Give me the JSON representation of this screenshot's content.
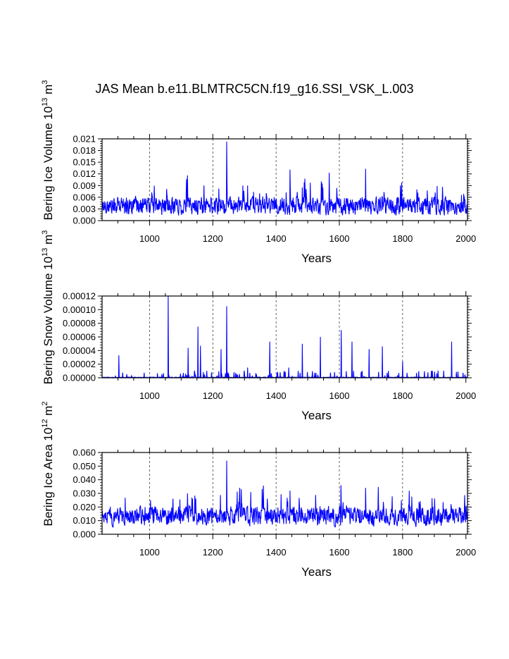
{
  "title": "JAS Mean b.e11.BLMTRC5CN.f19_g16.SSI_VSK_L.003",
  "series_color": "#0000ff",
  "chart_data": [
    {
      "type": "line",
      "ylabel_main": "Bering Ice Volume 10",
      "ylabel_exp": "13",
      "ylabel_unit": "m",
      "ylabel_unit_exp": "3",
      "xlabel": "Years",
      "xlim": [
        850,
        2005
      ],
      "ylim": [
        0,
        0.021
      ],
      "xticks": [
        1000,
        1200,
        1400,
        1600,
        1800,
        2000
      ],
      "yticks": [
        "0.000",
        "0.003",
        "0.006",
        "0.009",
        "0.012",
        "0.015",
        "0.018",
        "0.021"
      ],
      "ytick_values": [
        0,
        0.003,
        0.006,
        0.009,
        0.012,
        0.015,
        0.018,
        0.021
      ],
      "baseline": 0.0035,
      "noise": 0.002,
      "spikes": [
        [
          1244,
          0.0203
        ],
        [
          1444,
          0.0131
        ],
        [
          1683,
          0.0133
        ],
        [
          1568,
          0.0123
        ],
        [
          1120,
          0.0116
        ]
      ]
    },
    {
      "type": "line",
      "ylabel_main": "Bering Snow Volume 10",
      "ylabel_exp": "13",
      "ylabel_unit": "m",
      "ylabel_unit_exp": "3",
      "xlabel": "Years",
      "xlim": [
        850,
        2005
      ],
      "ylim": [
        0,
        0.00012
      ],
      "xticks": [
        1000,
        1200,
        1400,
        1600,
        1800,
        2000
      ],
      "yticks": [
        "0.00000",
        "0.00002",
        "0.00004",
        "0.00006",
        "0.00008",
        "0.00010",
        "0.00012"
      ],
      "ytick_values": [
        0,
        2e-05,
        4e-05,
        6e-05,
        8e-05,
        0.0001,
        0.00012
      ],
      "baseline": 5e-07,
      "noise": 1.5e-06,
      "spikes": [
        [
          1059,
          0.00012
        ],
        [
          1244,
          0.000105
        ],
        [
          1153,
          7.5e-05
        ],
        [
          1606,
          7e-05
        ],
        [
          1540,
          6e-05
        ],
        [
          1640,
          5.3e-05
        ],
        [
          1380,
          5.3e-05
        ],
        [
          1955,
          5.3e-05
        ],
        [
          1483,
          5e-05
        ],
        [
          1161,
          4.7e-05
        ],
        [
          1122,
          4.4e-05
        ],
        [
          1736,
          4.6e-05
        ],
        [
          1226,
          4.2e-05
        ],
        [
          1694,
          4.2e-05
        ],
        [
          903,
          3.3e-05
        ],
        [
          1310,
          1.5e-05
        ],
        [
          1440,
          1.5e-05
        ],
        [
          1800,
          2.4e-05
        ]
      ]
    },
    {
      "type": "line",
      "ylabel_main": "Bering Ice Area 10",
      "ylabel_exp": "12",
      "ylabel_unit": "m",
      "ylabel_unit_exp": "2",
      "xlabel": "Years",
      "xlim": [
        850,
        2005
      ],
      "ylim": [
        0,
        0.06
      ],
      "xticks": [
        1000,
        1200,
        1400,
        1600,
        1800,
        2000
      ],
      "yticks": [
        "0.000",
        "0.010",
        "0.020",
        "0.030",
        "0.040",
        "0.050",
        "0.060"
      ],
      "ytick_values": [
        0,
        0.01,
        0.02,
        0.03,
        0.04,
        0.05,
        0.06
      ],
      "baseline": 0.0125,
      "noise": 0.006,
      "spikes": [
        [
          1244,
          0.054
        ],
        [
          1605,
          0.036
        ],
        [
          1683,
          0.034
        ],
        [
          1444,
          0.032
        ],
        [
          1320,
          0.031
        ],
        [
          1120,
          0.03
        ]
      ]
    }
  ]
}
